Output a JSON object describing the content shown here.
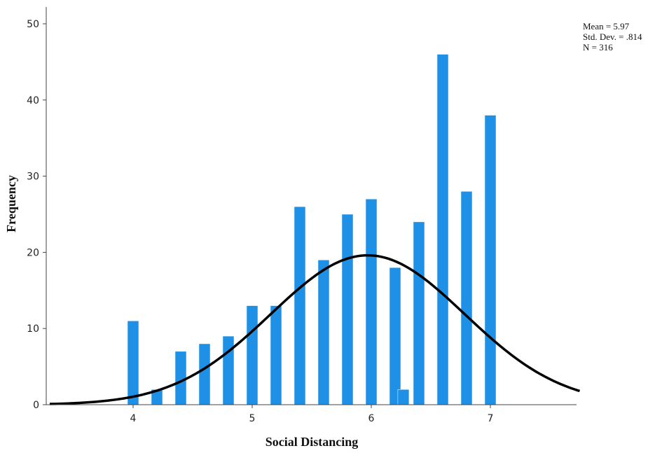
{
  "chart_data": {
    "type": "bar",
    "subtype": "histogram-with-normal-curve",
    "xlabel": "Social Distancing",
    "ylabel": "Frequency",
    "xlim": [
      3.3,
      7.75
    ],
    "ylim": [
      0,
      50
    ],
    "x_ticks": [
      4,
      5,
      6,
      7
    ],
    "y_ticks": [
      0,
      10,
      20,
      30,
      40,
      50
    ],
    "bar_color": "#1e90e6",
    "curve_color": "#000000",
    "series": [
      {
        "x": [
          4.0,
          4.2,
          4.4,
          4.6,
          4.8,
          5.0,
          5.2,
          5.4,
          5.6,
          5.8,
          6.0,
          6.2,
          6.27,
          6.4,
          6.6,
          6.8,
          7.0
        ],
        "values": [
          11,
          2,
          7,
          8,
          9,
          13,
          13,
          26,
          19,
          25,
          27,
          18,
          2,
          24,
          46,
          28,
          38
        ]
      }
    ],
    "normal_curve": {
      "mean": 5.97,
      "sd": 0.814,
      "n": 316
    },
    "stats_text": [
      "Mean = 5.97",
      "Std. Dev. = .814",
      "N = 316"
    ],
    "grid": false,
    "legend": "none"
  }
}
